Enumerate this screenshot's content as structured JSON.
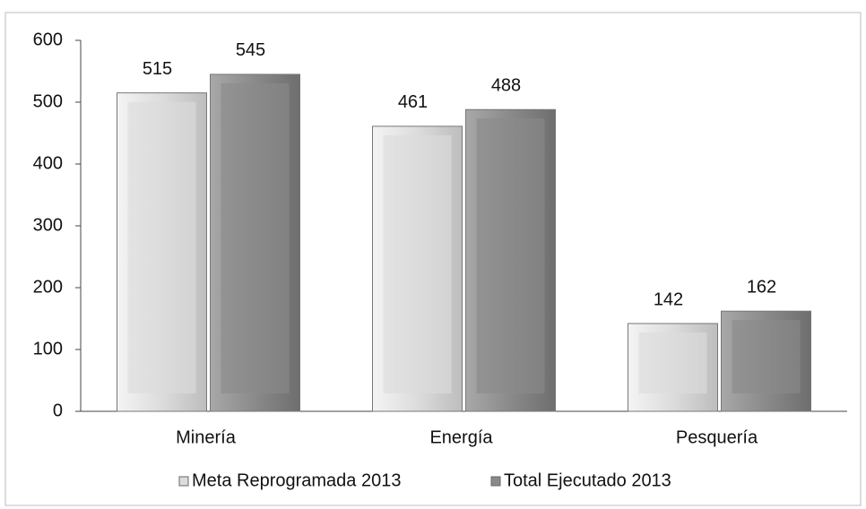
{
  "chart_data": {
    "type": "bar",
    "categories": [
      "Minería",
      "Energía",
      "Pesquería"
    ],
    "series": [
      {
        "name": "Meta Reprogramada 2013",
        "color": "#dcdcdc",
        "values": [
          515,
          461,
          142
        ]
      },
      {
        "name": "Total Ejecutado 2013",
        "color": "#8a8a8a",
        "values": [
          545,
          488,
          162
        ]
      }
    ],
    "ylim": [
      0,
      600
    ],
    "yticks": [
      0,
      100,
      200,
      300,
      400,
      500,
      600
    ],
    "legend": "bottom"
  }
}
